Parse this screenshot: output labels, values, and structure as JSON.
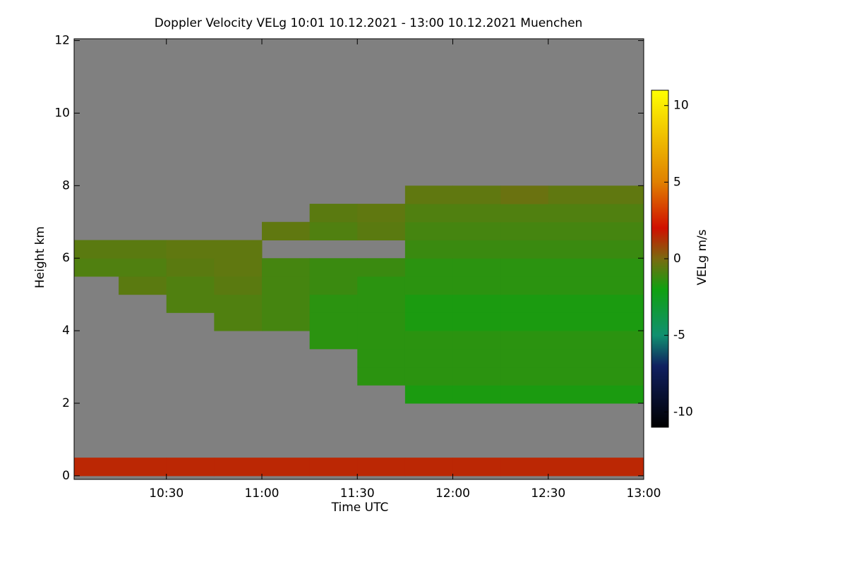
{
  "chart_data": {
    "type": "heatmap",
    "title": "Doppler Velocity VELg   10:01 10.12.2021 - 13:00 10.12.2021 Muenchen",
    "x_label": "Time UTC",
    "y_label": "Height km",
    "colorbar_label": "VELg m/s",
    "background_color": "#808080",
    "xlim": [
      10.0167,
      13.0
    ],
    "xticks": [
      {
        "value": 10.5,
        "label": "10:30"
      },
      {
        "value": 11.0,
        "label": "11:00"
      },
      {
        "value": 11.5,
        "label": "11:30"
      },
      {
        "value": 12.0,
        "label": "12:00"
      },
      {
        "value": 12.5,
        "label": "12:30"
      },
      {
        "value": 13.0,
        "label": "13:00"
      }
    ],
    "ylim": [
      -0.1,
      12.05
    ],
    "yticks": [
      0,
      2,
      4,
      6,
      8,
      10,
      12
    ],
    "zlim": [
      -11,
      11
    ],
    "zticks": [
      -10,
      -5,
      0,
      5,
      10
    ],
    "colormap": [
      {
        "value": -11,
        "color": "#000000"
      },
      {
        "value": -7,
        "color": "#102060"
      },
      {
        "value": -5,
        "color": "#109070"
      },
      {
        "value": -2,
        "color": "#10a010"
      },
      {
        "value": 0,
        "color": "#7a6a10"
      },
      {
        "value": 2,
        "color": "#d01000"
      },
      {
        "value": 5,
        "color": "#e08000"
      },
      {
        "value": 11,
        "color": "#ffff00"
      }
    ],
    "xbins": [
      10.0167,
      10.25,
      10.5,
      10.75,
      11.0,
      11.25,
      11.5,
      11.75,
      12.0,
      12.25,
      12.5,
      12.75,
      13.0
    ],
    "ybins": [
      0,
      0.5,
      1,
      1.5,
      2,
      2.5,
      3,
      3.5,
      4,
      4.5,
      5,
      5.5,
      6,
      6.5,
      7,
      7.5,
      8,
      8.5,
      9,
      9.5,
      10,
      10.5,
      11,
      11.5,
      12
    ],
    "z": [
      [
        1.5,
        1.5,
        1.5,
        1.5,
        1.5,
        1.5,
        1.5,
        1.5,
        1.5,
        1.5,
        1.5,
        1.5
      ],
      [
        null,
        null,
        null,
        null,
        null,
        null,
        null,
        null,
        null,
        null,
        null,
        null
      ],
      [
        null,
        null,
        null,
        null,
        null,
        null,
        null,
        null,
        null,
        null,
        null,
        null
      ],
      [
        null,
        null,
        null,
        null,
        null,
        null,
        null,
        null,
        null,
        null,
        null,
        null
      ],
      [
        null,
        null,
        null,
        null,
        null,
        null,
        null,
        -1.8,
        -1.8,
        -1.8,
        -1.8,
        -1.8
      ],
      [
        null,
        null,
        null,
        null,
        null,
        null,
        -1.5,
        -1.5,
        -1.5,
        -1.5,
        -1.5,
        -1.5
      ],
      [
        null,
        null,
        null,
        null,
        null,
        null,
        -1.5,
        -1.5,
        -1.5,
        -1.5,
        -1.5,
        -1.5
      ],
      [
        null,
        null,
        null,
        null,
        null,
        -1.5,
        -1.5,
        -1.5,
        -1.5,
        -1.5,
        -1.5,
        -1.5
      ],
      [
        null,
        null,
        null,
        -0.8,
        -1,
        -1.5,
        -1.5,
        -1.8,
        -1.8,
        -1.8,
        -1.8,
        -1.8
      ],
      [
        null,
        null,
        -0.8,
        -0.8,
        -1,
        -1.5,
        -1.5,
        -1.8,
        -1.8,
        -1.8,
        -1.8,
        -1.8
      ],
      [
        null,
        -0.6,
        -0.8,
        -0.6,
        -1,
        -1.2,
        -1.5,
        -1.5,
        -1.5,
        -1.5,
        -1.5,
        -1.5
      ],
      [
        -0.8,
        -0.8,
        -0.6,
        -0.5,
        -1,
        -1.2,
        -1.2,
        -1.5,
        -1.5,
        -1.5,
        -1.5,
        -1.5
      ],
      [
        -0.6,
        -0.6,
        -0.5,
        -0.5,
        null,
        null,
        null,
        -1.2,
        -1.2,
        -1.2,
        -1.2,
        -1.2
      ],
      [
        null,
        null,
        null,
        null,
        -0.5,
        -0.8,
        -0.6,
        -1,
        -1,
        -1,
        -1,
        -1
      ],
      [
        null,
        null,
        null,
        null,
        null,
        -0.6,
        -0.5,
        -0.8,
        -0.8,
        -0.8,
        -0.8,
        -0.8
      ],
      [
        null,
        null,
        null,
        null,
        null,
        null,
        null,
        -0.5,
        -0.5,
        -0.3,
        -0.5,
        -0.5
      ],
      [
        null,
        null,
        null,
        null,
        null,
        null,
        null,
        null,
        null,
        null,
        null,
        null
      ],
      [
        null,
        null,
        null,
        null,
        null,
        null,
        null,
        null,
        null,
        null,
        null,
        null
      ],
      [
        null,
        null,
        null,
        null,
        null,
        null,
        null,
        null,
        null,
        null,
        null,
        null
      ],
      [
        null,
        null,
        null,
        null,
        null,
        null,
        null,
        null,
        null,
        null,
        null,
        null
      ],
      [
        null,
        null,
        null,
        null,
        null,
        null,
        null,
        null,
        null,
        null,
        null,
        null
      ],
      [
        null,
        null,
        null,
        null,
        null,
        null,
        null,
        null,
        null,
        null,
        null,
        null
      ],
      [
        null,
        null,
        null,
        null,
        null,
        null,
        null,
        null,
        null,
        null,
        null,
        null
      ],
      [
        null,
        null,
        null,
        null,
        null,
        null,
        null,
        null,
        null,
        null,
        null,
        null
      ]
    ]
  }
}
